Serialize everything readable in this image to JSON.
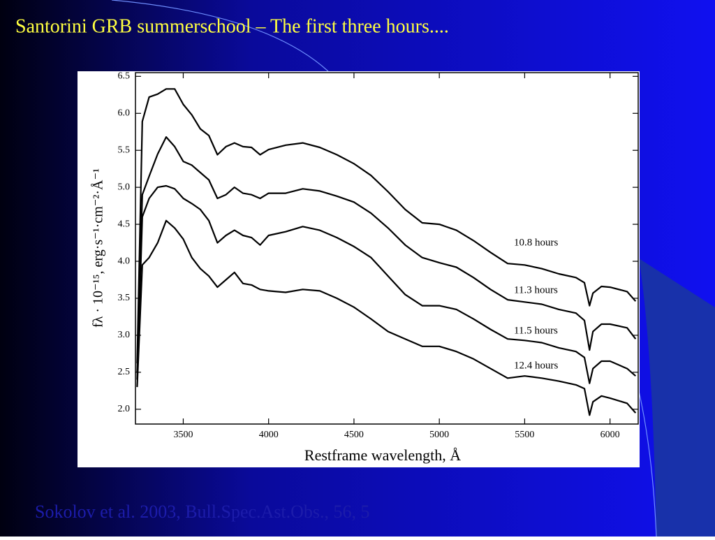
{
  "slide": {
    "title": "Santorini GRB summerschool – The first three hours....",
    "footer": "Sokolov et al. 2003, Bull.Spec.Ast.Obs., 56, 5"
  },
  "chart_data": {
    "type": "line",
    "xlabel": "Restframe wavelength, Å",
    "ylabel": "fλ · 10⁻¹⁵, erg·s⁻¹·cm⁻²·Å⁻¹",
    "x": [
      3230,
      3260,
      3300,
      3350,
      3400,
      3450,
      3500,
      3550,
      3600,
      3650,
      3700,
      3750,
      3800,
      3850,
      3900,
      3950,
      4000,
      4100,
      4200,
      4300,
      4400,
      4500,
      4600,
      4700,
      4800,
      4900,
      5000,
      5100,
      5200,
      5300,
      5400,
      5500,
      5600,
      5700,
      5800,
      5850,
      5880,
      5900,
      5950,
      6000,
      6100,
      6150
    ],
    "series": [
      {
        "name": "10.8 hours",
        "color": "#000000",
        "values": [
          2.62,
          5.89,
          6.22,
          6.26,
          6.33,
          6.33,
          6.12,
          5.98,
          5.79,
          5.7,
          5.44,
          5.55,
          5.6,
          5.55,
          5.54,
          5.44,
          5.51,
          5.57,
          5.6,
          5.54,
          5.44,
          5.32,
          5.16,
          4.94,
          4.7,
          4.52,
          4.5,
          4.42,
          4.28,
          4.12,
          3.97,
          3.95,
          3.9,
          3.83,
          3.78,
          3.71,
          3.4,
          3.57,
          3.66,
          3.65,
          3.59,
          3.46
        ]
      },
      {
        "name": "11.3 hours",
        "color": "#000000",
        "values": [
          2.5,
          4.9,
          5.15,
          5.45,
          5.68,
          5.55,
          5.35,
          5.3,
          5.2,
          5.1,
          4.85,
          4.9,
          5.0,
          4.92,
          4.9,
          4.85,
          4.92,
          4.92,
          4.98,
          4.95,
          4.88,
          4.8,
          4.65,
          4.45,
          4.22,
          4.05,
          3.98,
          3.92,
          3.78,
          3.62,
          3.48,
          3.45,
          3.42,
          3.35,
          3.3,
          3.2,
          2.8,
          3.05,
          3.15,
          3.15,
          3.1,
          2.95
        ]
      },
      {
        "name": "11.5 hours",
        "color": "#000000",
        "values": [
          2.4,
          4.6,
          4.85,
          5.0,
          5.02,
          4.98,
          4.85,
          4.78,
          4.7,
          4.55,
          4.25,
          4.35,
          4.42,
          4.35,
          4.32,
          4.22,
          4.35,
          4.4,
          4.47,
          4.42,
          4.32,
          4.2,
          4.05,
          3.8,
          3.55,
          3.4,
          3.4,
          3.35,
          3.22,
          3.08,
          2.95,
          2.93,
          2.9,
          2.83,
          2.78,
          2.7,
          2.35,
          2.55,
          2.65,
          2.65,
          2.55,
          2.45
        ]
      },
      {
        "name": "12.4 hours",
        "color": "#000000",
        "values": [
          2.3,
          3.95,
          4.05,
          4.25,
          4.55,
          4.45,
          4.3,
          4.05,
          3.9,
          3.8,
          3.65,
          3.75,
          3.85,
          3.7,
          3.68,
          3.62,
          3.6,
          3.58,
          3.62,
          3.6,
          3.5,
          3.38,
          3.22,
          3.05,
          2.95,
          2.85,
          2.85,
          2.78,
          2.68,
          2.55,
          2.42,
          2.45,
          2.42,
          2.38,
          2.33,
          2.28,
          1.92,
          2.1,
          2.18,
          2.15,
          2.08,
          1.95
        ]
      }
    ],
    "xlim": [
      3220,
      6165
    ],
    "ylim": [
      1.8,
      6.55
    ],
    "xticks": [
      3500,
      4000,
      4500,
      5000,
      5500,
      6000
    ],
    "yticks": [
      {
        "value": 2,
        "label": "2.0"
      },
      2.5,
      {
        "value": 3,
        "label": "3.0"
      },
      3.5,
      {
        "value": 4,
        "label": "4.0"
      },
      4.5,
      {
        "value": 5,
        "label": "5.0"
      },
      5.5,
      {
        "value": 6,
        "label": "6.0"
      },
      6.5
    ],
    "grid": false
  }
}
